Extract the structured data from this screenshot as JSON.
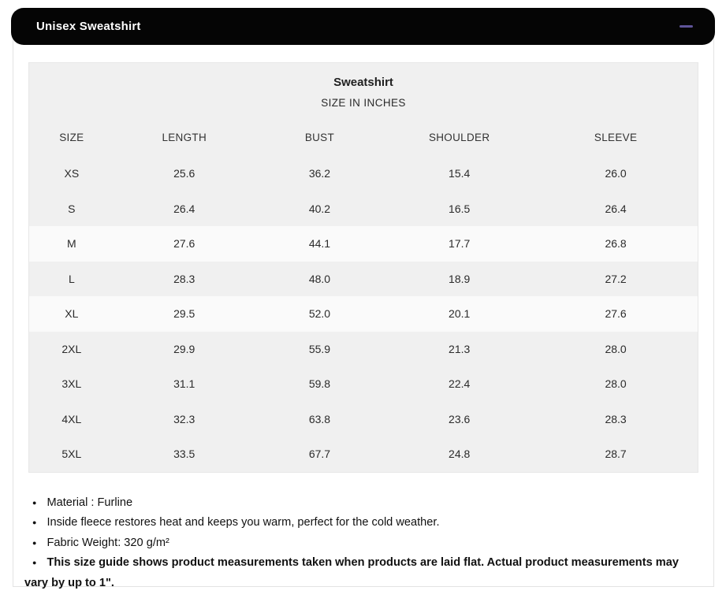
{
  "header": {
    "title": "Unisex Sweatshirt",
    "collapse_icon": "minus"
  },
  "colors": {
    "header_bg": "#050505",
    "header_text": "#ffffff",
    "collapse_dash": "#5f5499",
    "table_bg": "#f0f0f0",
    "row_light_bg": "#fafafa",
    "panel_border": "#e3e3e3"
  },
  "table": {
    "caption": "Sweatshirt",
    "subcaption": "SIZE IN INCHES",
    "columns": [
      "SIZE",
      "LENGTH",
      "BUST",
      "SHOULDER",
      "SLEEVE"
    ],
    "rows": [
      {
        "cells": [
          "XS",
          "25.6",
          "36.2",
          "15.4",
          "26.0"
        ],
        "light": false
      },
      {
        "cells": [
          "S",
          "26.4",
          "40.2",
          "16.5",
          "26.4"
        ],
        "light": false
      },
      {
        "cells": [
          "M",
          "27.6",
          "44.1",
          "17.7",
          "26.8"
        ],
        "light": true
      },
      {
        "cells": [
          "L",
          "28.3",
          "48.0",
          "18.9",
          "27.2"
        ],
        "light": false
      },
      {
        "cells": [
          "XL",
          "29.5",
          "52.0",
          "20.1",
          "27.6"
        ],
        "light": true
      },
      {
        "cells": [
          "2XL",
          "29.9",
          "55.9",
          "21.3",
          "28.0"
        ],
        "light": false
      },
      {
        "cells": [
          "3XL",
          "31.1",
          "59.8",
          "22.4",
          "28.0"
        ],
        "light": false
      },
      {
        "cells": [
          "4XL",
          "32.3",
          "63.8",
          "23.6",
          "28.3"
        ],
        "light": false
      },
      {
        "cells": [
          "5XL",
          "33.5",
          "67.7",
          "24.8",
          "28.7"
        ],
        "light": false
      }
    ]
  },
  "notes": [
    {
      "text": "Material : Furline",
      "bold": false
    },
    {
      "text": "Inside fleece restores heat and keeps you warm, perfect for the cold weather.",
      "bold": false
    },
    {
      "text": "Fabric Weight: 320 g/m²",
      "bold": false
    },
    {
      "text": "This size guide shows product measurements taken when products are laid flat. Actual product measurements may vary by up to 1\".",
      "bold": true
    }
  ]
}
